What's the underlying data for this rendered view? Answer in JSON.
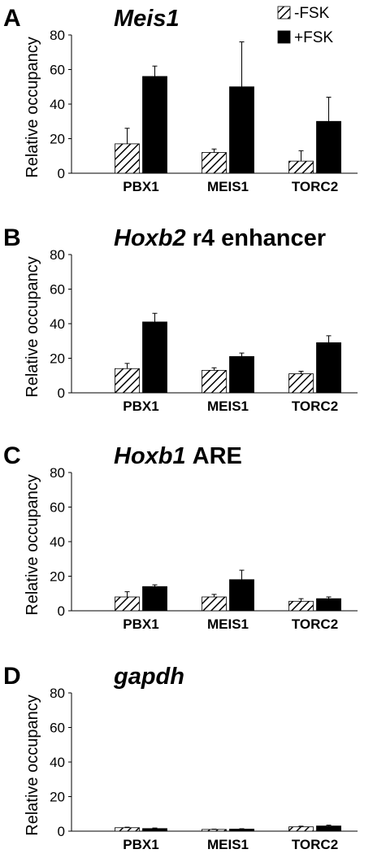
{
  "chart_data": [
    {
      "type": "bar",
      "panel_label": "A",
      "title_italic": "Meis1",
      "ylabel": "Relative occupancy",
      "categories": [
        "PBX1",
        "MEIS1",
        "TORC2"
      ],
      "legend": "upper right",
      "series": [
        {
          "name": "-FSK",
          "color": "#000000",
          "pattern": "hatch",
          "values": [
            17,
            12,
            7
          ],
          "errors": [
            9,
            2,
            6
          ]
        },
        {
          "name": "+FSK",
          "color": "#000000",
          "pattern": "solid",
          "values": [
            56,
            50,
            30
          ],
          "errors": [
            6,
            26,
            14
          ]
        }
      ],
      "ylim": [
        0,
        80
      ],
      "yticks": [
        0,
        20,
        40,
        60,
        80
      ]
    },
    {
      "type": "bar",
      "panel_label": "B",
      "title_italic": "Hoxb2",
      "title_rest": "r4 enhancer",
      "ylabel": "Relative occupancy",
      "categories": [
        "PBX1",
        "MEIS1",
        "TORC2"
      ],
      "series": [
        {
          "color": "#000000",
          "pattern": "hatch",
          "values": [
            14,
            13,
            11
          ],
          "errors": [
            3,
            1.5,
            1.5
          ]
        },
        {
          "color": "#000000",
          "pattern": "solid",
          "values": [
            41,
            21,
            29
          ],
          "errors": [
            5,
            2,
            4
          ]
        }
      ],
      "ylim": [
        0,
        80
      ],
      "yticks": [
        0,
        20,
        40,
        60,
        80
      ]
    },
    {
      "type": "bar",
      "panel_label": "C",
      "title_italic": "Hoxb1",
      "title_rest": "ARE",
      "ylabel": "Relative occupancy",
      "categories": [
        "PBX1",
        "MEIS1",
        "TORC2"
      ],
      "series": [
        {
          "color": "#000000",
          "pattern": "hatch",
          "values": [
            8,
            8,
            5.5
          ],
          "errors": [
            3,
            1.5,
            1.5
          ]
        },
        {
          "color": "#000000",
          "pattern": "solid",
          "values": [
            14,
            18,
            7
          ],
          "errors": [
            1,
            5.5,
            1
          ]
        }
      ],
      "ylim": [
        0,
        80
      ],
      "yticks": [
        0,
        20,
        40,
        60,
        80
      ]
    },
    {
      "type": "bar",
      "panel_label": "D",
      "title_italic": "gapdh",
      "ylabel": "Relative occupancy",
      "categories": [
        "PBX1",
        "MEIS1",
        "TORC2"
      ],
      "series": [
        {
          "color": "#000000",
          "pattern": "hatch",
          "values": [
            2,
            1,
            2.5
          ],
          "errors": [
            0.3,
            0.2,
            0.4
          ]
        },
        {
          "color": "#000000",
          "pattern": "solid",
          "values": [
            1.5,
            1.2,
            3
          ],
          "errors": [
            0.3,
            0.2,
            0.5
          ]
        }
      ],
      "ylim": [
        0,
        80
      ],
      "yticks": [
        0,
        20,
        40,
        60,
        80
      ]
    }
  ]
}
